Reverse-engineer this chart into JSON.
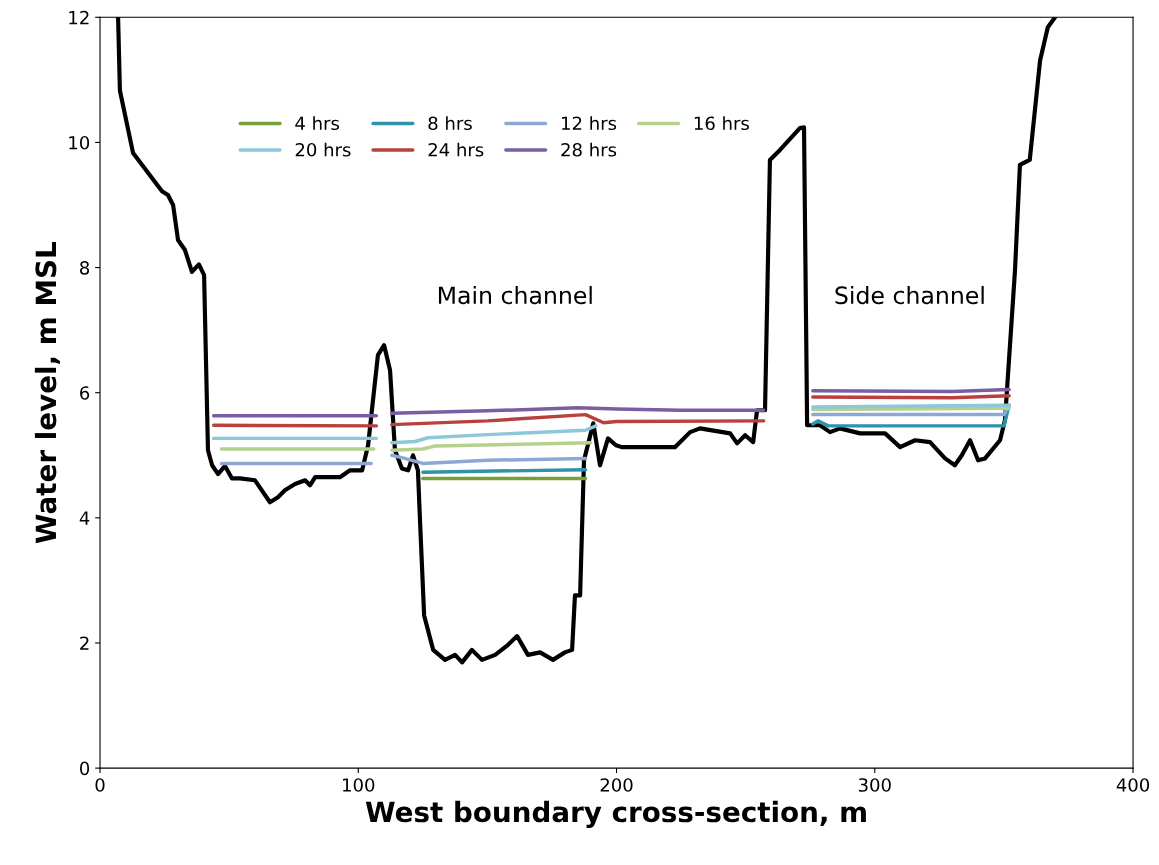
{
  "chart_data": {
    "type": "line",
    "xlabel": "West boundary cross-section, m",
    "ylabel": "Water level, m MSL",
    "xlim": [
      0,
      400
    ],
    "xticks": [
      0,
      100,
      200,
      300,
      400
    ],
    "ylim": [
      0,
      12
    ],
    "yticks": [
      0,
      2,
      4,
      6,
      8,
      10,
      12
    ],
    "grid": false,
    "legend": "top",
    "marker": "none",
    "line_style": "solid",
    "annotations": [
      "Main channel",
      "Side channel"
    ],
    "series": [
      {
        "color": "#000000",
        "x": [
          7,
          7.7,
          12.8,
          24,
          26.3,
          28.3,
          30.2,
          32.9,
          35.6,
          38.3,
          40.3,
          41.8,
          43.4,
          45.7,
          48.4,
          51.1,
          54.2,
          60,
          65.8,
          68.9,
          71.6,
          75.5,
          79.4,
          81.3,
          83.3,
          92.9,
          96.8,
          101.5,
          103.8,
          107.6,
          110,
          112.3,
          114.2,
          116.9,
          119.3,
          121.2,
          123.1,
          123.9,
          125.5,
          129,
          133.6,
          137.5,
          140.2,
          144,
          147.9,
          153,
          158,
          161.5,
          165.7,
          170.4,
          175.4,
          180,
          182.8,
          183.9,
          185.9,
          187.4,
          191,
          193.6,
          196.7,
          199.8,
          202,
          222.6,
          228.5,
          232.3,
          244,
          246.7,
          249.8,
          252.9,
          254.4,
          257.5,
          259.4,
          263.3,
          271,
          272.6,
          273.8,
          278.8,
          282.7,
          286.5,
          294.3,
          304,
          309.8,
          315.6,
          321.4,
          327.2,
          331,
          333.7,
          336.9,
          340,
          342.7,
          348.5,
          350.4,
          354.3,
          356.2,
          360,
          364,
          367,
          369.8
        ],
        "values": [
          12,
          10.83,
          9.83,
          9.22,
          9.16,
          9.0,
          8.44,
          8.28,
          7.93,
          8.05,
          7.88,
          5.08,
          4.84,
          4.7,
          4.83,
          4.63,
          4.63,
          4.6,
          4.25,
          4.33,
          4.44,
          4.54,
          4.6,
          4.52,
          4.65,
          4.65,
          4.76,
          4.76,
          5.16,
          6.6,
          6.76,
          6.36,
          5.08,
          4.79,
          4.76,
          5.0,
          4.76,
          3.96,
          2.44,
          1.89,
          1.73,
          1.81,
          1.69,
          1.89,
          1.73,
          1.81,
          1.97,
          2.11,
          1.81,
          1.85,
          1.73,
          1.85,
          1.89,
          2.76,
          2.76,
          4.92,
          5.51,
          4.84,
          5.27,
          5.16,
          5.13,
          5.13,
          5.37,
          5.43,
          5.35,
          5.19,
          5.32,
          5.21,
          5.72,
          5.72,
          9.72,
          9.88,
          10.23,
          10.24,
          5.48,
          5.48,
          5.37,
          5.43,
          5.35,
          5.35,
          5.13,
          5.24,
          5.21,
          4.95,
          4.84,
          5.0,
          5.24,
          4.92,
          4.95,
          5.24,
          5.56,
          7.96,
          9.64,
          9.72,
          11.31,
          11.84,
          12
        ]
      },
      {
        "name": "4 hrs",
        "color": "#77a03c",
        "x": [
          125,
          188
        ],
        "values": [
          4.63,
          4.63
        ]
      },
      {
        "name": "8 hrs",
        "color": "#2e93a8",
        "x": [
          125,
          188,
          null,
          276,
          278,
          282,
          350,
          352
        ],
        "values": [
          4.73,
          4.77,
          null,
          5.5,
          5.55,
          5.47,
          5.47,
          5.8
        ]
      },
      {
        "name": "12 hrs",
        "color": "#8ea8d6",
        "x": [
          47,
          105,
          null,
          113,
          118,
          125,
          150,
          188,
          null,
          276,
          350,
          352
        ],
        "values": [
          4.87,
          4.87,
          null,
          5.0,
          4.95,
          4.87,
          4.92,
          4.95,
          null,
          5.65,
          5.65,
          5.8
        ]
      },
      {
        "name": "16 hrs",
        "color": "#b6d08e",
        "x": [
          47,
          106,
          null,
          113,
          125,
          130,
          190,
          null,
          276,
          352
        ],
        "values": [
          5.1,
          5.1,
          null,
          5.08,
          5.1,
          5.15,
          5.2,
          null,
          5.73,
          5.75
        ]
      },
      {
        "name": "20 hrs",
        "color": "#8cc7da",
        "x": [
          44,
          107,
          null,
          113,
          122,
          127,
          150,
          188,
          192,
          null,
          276,
          352
        ],
        "values": [
          5.27,
          5.27,
          null,
          5.2,
          5.22,
          5.28,
          5.33,
          5.4,
          5.47,
          null,
          5.77,
          5.8
        ]
      },
      {
        "name": "24 hrs",
        "color": "#b8413d",
        "x": [
          44,
          107,
          null,
          113,
          150,
          188,
          195,
          200,
          257,
          null,
          276,
          330,
          352
        ],
        "values": [
          5.48,
          5.47,
          null,
          5.49,
          5.55,
          5.65,
          5.52,
          5.54,
          5.55,
          null,
          5.93,
          5.92,
          5.95
        ]
      },
      {
        "name": "28 hrs",
        "color": "#7a5da3",
        "x": [
          44,
          107,
          null,
          113,
          150,
          185,
          200,
          225,
          257,
          null,
          276,
          330,
          352
        ],
        "values": [
          5.63,
          5.63,
          null,
          5.67,
          5.71,
          5.76,
          5.74,
          5.72,
          5.72,
          null,
          6.03,
          6.02,
          6.05
        ]
      }
    ]
  }
}
